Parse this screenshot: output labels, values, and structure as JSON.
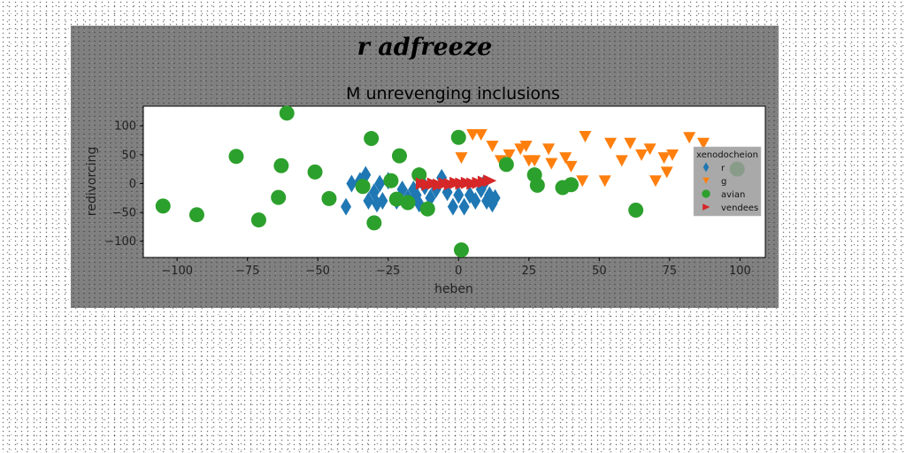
{
  "chart_data": {
    "type": "scatter",
    "suptitle": "r adfreeze",
    "title": "M unrevenging inclusions",
    "xlabel": "heben",
    "ylabel": "redivorcing",
    "xlim": [
      -112,
      109
    ],
    "ylim": [
      -128,
      134
    ],
    "xticks": [
      -100,
      -75,
      -50,
      -25,
      0,
      25,
      50,
      75,
      100
    ],
    "yticks": [
      100,
      50,
      0,
      -50,
      -100
    ],
    "legend": {
      "title": "xenodocheion",
      "placement": "right"
    },
    "series": [
      {
        "name": "r",
        "marker": "diamond",
        "color": "#1f77b4",
        "points": [
          [
            -40,
            -40
          ],
          [
            -38,
            0
          ],
          [
            -35,
            5
          ],
          [
            -33,
            15
          ],
          [
            -32,
            -30
          ],
          [
            -30,
            -15
          ],
          [
            -29,
            -35
          ],
          [
            -28,
            0
          ],
          [
            -27,
            -30
          ],
          [
            -25,
            5
          ],
          [
            -22,
            -30
          ],
          [
            -20,
            -10
          ],
          [
            -18,
            -25
          ],
          [
            -16,
            -10
          ],
          [
            -15,
            -20
          ],
          [
            -14,
            -35
          ],
          [
            -12,
            -5
          ],
          [
            -10,
            -25
          ],
          [
            -8,
            -10
          ],
          [
            -6,
            10
          ],
          [
            -4,
            -15
          ],
          [
            -2,
            -40
          ],
          [
            0,
            -20
          ],
          [
            2,
            -40
          ],
          [
            4,
            -20
          ],
          [
            6,
            -30
          ],
          [
            8,
            -10
          ],
          [
            9,
            0
          ],
          [
            10,
            -30
          ],
          [
            11,
            -20
          ],
          [
            12,
            -35
          ],
          [
            13,
            -25
          ]
        ]
      },
      {
        "name": "g",
        "marker": "triangle-down",
        "color": "#ff7f0e",
        "points": [
          [
            1,
            45
          ],
          [
            5,
            85
          ],
          [
            8,
            85
          ],
          [
            12,
            65
          ],
          [
            15,
            40
          ],
          [
            18,
            50
          ],
          [
            22,
            60
          ],
          [
            24,
            65
          ],
          [
            25,
            40
          ],
          [
            27,
            40
          ],
          [
            32,
            60
          ],
          [
            33,
            35
          ],
          [
            38,
            45
          ],
          [
            40,
            30
          ],
          [
            44,
            5
          ],
          [
            45,
            82
          ],
          [
            52,
            5
          ],
          [
            54,
            70
          ],
          [
            58,
            40
          ],
          [
            61,
            70
          ],
          [
            65,
            50
          ],
          [
            68,
            60
          ],
          [
            70,
            5
          ],
          [
            73,
            45
          ],
          [
            74,
            20
          ],
          [
            76,
            50
          ],
          [
            82,
            80
          ],
          [
            87,
            70
          ]
        ]
      },
      {
        "name": "avian",
        "marker": "circle",
        "color": "#2ca02c",
        "points": [
          [
            -61,
            122
          ],
          [
            -105,
            -39
          ],
          [
            -93,
            -54
          ],
          [
            -79,
            47
          ],
          [
            -71,
            -63
          ],
          [
            -64,
            -24
          ],
          [
            -63,
            31
          ],
          [
            -51,
            20
          ],
          [
            -46,
            -26
          ],
          [
            -34,
            -5
          ],
          [
            -31,
            78
          ],
          [
            -30,
            -68
          ],
          [
            -24,
            5
          ],
          [
            -22,
            -27
          ],
          [
            -21,
            48
          ],
          [
            -18,
            -33
          ],
          [
            -14,
            15
          ],
          [
            -11,
            -44
          ],
          [
            0,
            80
          ],
          [
            1,
            -115
          ],
          [
            17,
            33
          ],
          [
            27,
            15
          ],
          [
            28,
            -3
          ],
          [
            37,
            -7
          ],
          [
            40,
            -2
          ],
          [
            63,
            -46
          ],
          [
            99,
            25
          ]
        ]
      },
      {
        "name": "vendees",
        "marker": "triangle-right",
        "color": "#d62728",
        "points": [
          [
            -13,
            0
          ],
          [
            -11,
            -2
          ],
          [
            -9,
            0
          ],
          [
            -7,
            -2
          ],
          [
            -5,
            0
          ],
          [
            -3,
            -1
          ],
          [
            -1,
            1
          ],
          [
            1,
            0
          ],
          [
            3,
            1
          ],
          [
            5,
            0
          ],
          [
            7,
            1
          ],
          [
            9,
            3
          ],
          [
            11,
            5
          ]
        ]
      }
    ]
  }
}
